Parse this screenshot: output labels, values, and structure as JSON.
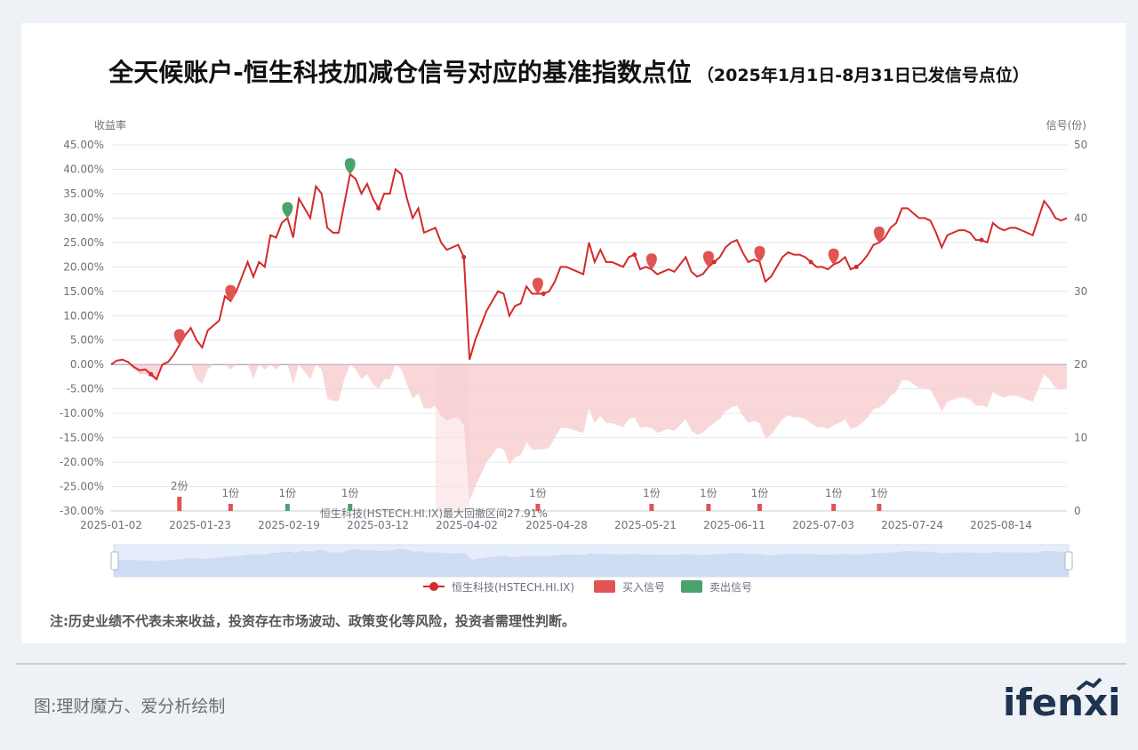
{
  "title": {
    "main": "全天候账户-恒生科技加减仓信号对应的基准指数点位",
    "sub": "（2025年1月1日-8月31日已发信号点位）"
  },
  "note": "注:历史业绩不代表未来收益，投资存在市场波动、政策变化等风险，投资者需理性判断。",
  "source": "图:理财魔方、爱分析绘制",
  "logo": "ifenxi",
  "colors": {
    "line": "#d42a2a",
    "buy": "#e05454",
    "sell": "#4aa36d",
    "drawdown": "#f7c9cc",
    "grid": "#e3e7ee",
    "zoom_fill": "#dce6f8"
  },
  "chart_data": {
    "type": "line",
    "y_left": {
      "label": "收益率",
      "min": -30,
      "max": 45,
      "ticks": [
        "45.00%",
        "40.00%",
        "35.00%",
        "30.00%",
        "25.00%",
        "20.00%",
        "15.00%",
        "10.00%",
        "5.00%",
        "0.00%",
        "-5.00%",
        "-10.00%",
        "-15.00%",
        "-20.00%",
        "-25.00%",
        "-30.00%"
      ]
    },
    "y_right": {
      "label": "信号(份)",
      "ticks": [
        "50",
        "40",
        "30",
        "20",
        "10",
        "0"
      ]
    },
    "x_ticks": [
      "2025-01-02",
      "2025-01-23",
      "2025-02-19",
      "2025-03-12",
      "2025-04-02",
      "2025-04-28",
      "2025-05-21",
      "2025-06-11",
      "2025-07-03",
      "2025-07-24",
      "2025-08-14"
    ],
    "series": [
      {
        "name": "恒生科技(HSTECH.HI.IX)",
        "values": [
          0,
          0.8,
          1,
          0.5,
          -0.5,
          -1.2,
          -1,
          -2,
          -3,
          0,
          0.5,
          2,
          4,
          6,
          7.5,
          5,
          3.5,
          7,
          8,
          9,
          14,
          13,
          15,
          18,
          21,
          18,
          21,
          20,
          26.5,
          26,
          29,
          30,
          26,
          34,
          32,
          30,
          36.5,
          35,
          28,
          27,
          27,
          33,
          39,
          38,
          35,
          37,
          34,
          32,
          35,
          35,
          40,
          39,
          34,
          30,
          32,
          27,
          27.5,
          28,
          25,
          23.5,
          24,
          24.5,
          22,
          1,
          5,
          8,
          11,
          13,
          15,
          14.5,
          10,
          12,
          12.5,
          16,
          14.5,
          14.5,
          14.5,
          15,
          17,
          20,
          20,
          19.5,
          19,
          18.5,
          25,
          21,
          23.5,
          21,
          21,
          20.5,
          20,
          22,
          22.5,
          19.5,
          20,
          19.5,
          18.5,
          19,
          19.5,
          19,
          20.5,
          22,
          19,
          18,
          18.5,
          20,
          21,
          22,
          24,
          25,
          25.5,
          23,
          21,
          21.5,
          21,
          17,
          18,
          20,
          22,
          23,
          22.5,
          22.5,
          22,
          21,
          20,
          20,
          19.5,
          20.5,
          21,
          22,
          19.5,
          20,
          21,
          22.5,
          24.5,
          25,
          26,
          28,
          29,
          32,
          32,
          31,
          30,
          30,
          29.5,
          27,
          24,
          26.5,
          27,
          27.5,
          27.5,
          27,
          25.5,
          25.5,
          25,
          29,
          28,
          27.5,
          28,
          28,
          27.5,
          27,
          26.5,
          30,
          33.5,
          32,
          30,
          29.5,
          30
        ]
      },
      {
        "name": "买入信号"
      },
      {
        "name": "卖出信号"
      }
    ],
    "drawdown_series": [
      0,
      0,
      0,
      0,
      -1,
      -2,
      -2,
      -2.5,
      -3.5,
      0,
      0,
      0,
      0,
      0,
      0,
      -3,
      -4,
      -1,
      0,
      0,
      0,
      -1,
      0,
      0,
      0,
      -3,
      0,
      -1,
      0,
      -1,
      0,
      0,
      -4,
      0,
      -1.5,
      -3,
      0,
      -1,
      -7,
      -7.5,
      -7.5,
      -3,
      0,
      -1,
      -3,
      -2,
      -4,
      -5,
      -3,
      -3,
      0,
      -1,
      -4,
      -7,
      -6,
      -9,
      -9,
      -8.5,
      -10.5,
      -11.5,
      -11,
      -10.8,
      -12.5,
      -27.9,
      -25,
      -22.5,
      -20,
      -18.5,
      -17,
      -17.4,
      -20.5,
      -19,
      -18.5,
      -16,
      -17.4,
      -17.4,
      -17.4,
      -17,
      -15,
      -13,
      -13,
      -13.3,
      -13.7,
      -14,
      -9,
      -12,
      -10.5,
      -12,
      -12,
      -12.4,
      -12.8,
      -11.2,
      -10.8,
      -13,
      -12.8,
      -13,
      -14,
      -13.6,
      -13.2,
      -13.6,
      -12.4,
      -11.2,
      -13.6,
      -14.4,
      -14,
      -12.8,
      -12,
      -11.2,
      -9.6,
      -8.8,
      -8.4,
      -10.4,
      -12,
      -11.6,
      -12,
      -15.2,
      -14.4,
      -12.8,
      -11.2,
      -10.4,
      -10.8,
      -10.8,
      -11.2,
      -12,
      -12.8,
      -12.8,
      -13.2,
      -12.4,
      -12,
      -11.2,
      -13.2,
      -12.8,
      -12,
      -10.8,
      -9.2,
      -8.8,
      -8,
      -6.4,
      -5.6,
      -3.2,
      -3.2,
      -4,
      -4.8,
      -4.8,
      -5.2,
      -7.2,
      -9.6,
      -7.6,
      -7.2,
      -6.8,
      -6.8,
      -7.2,
      -8.4,
      -8.4,
      -8.8,
      -5.6,
      -6.4,
      -6.8,
      -6.4,
      -6.4,
      -6.8,
      -7.2,
      -7.6,
      -4.8,
      -2,
      -3.2,
      -4.8,
      -5.2,
      -4.8
    ],
    "drawdown_annotation": "恒生科技(HSTECH.HI.IX)最大回撤区间27.91%",
    "signals": [
      {
        "type": "buy",
        "index": 12,
        "qty": 2,
        "label": "2份"
      },
      {
        "type": "buy",
        "index": 21,
        "qty": 1,
        "label": "1份"
      },
      {
        "type": "sell",
        "index": 31,
        "qty": 1,
        "label": "1份"
      },
      {
        "type": "sell",
        "index": 42,
        "qty": 1,
        "label": "1份"
      },
      {
        "type": "buy",
        "index": 75,
        "qty": 1,
        "label": "1份"
      },
      {
        "type": "buy",
        "index": 95,
        "qty": 1,
        "label": "1份"
      },
      {
        "type": "buy",
        "index": 105,
        "qty": 1,
        "label": "1份"
      },
      {
        "type": "buy",
        "index": 114,
        "qty": 1,
        "label": "1份"
      },
      {
        "type": "buy",
        "index": 127,
        "qty": 1,
        "label": "1份"
      },
      {
        "type": "buy",
        "index": 135,
        "qty": 1,
        "label": "1份"
      }
    ],
    "legend": [
      "恒生科技(HSTECH.HI.IX)",
      "买入信号",
      "卖出信号"
    ],
    "grid": true,
    "legend_position": "bottom-center"
  }
}
